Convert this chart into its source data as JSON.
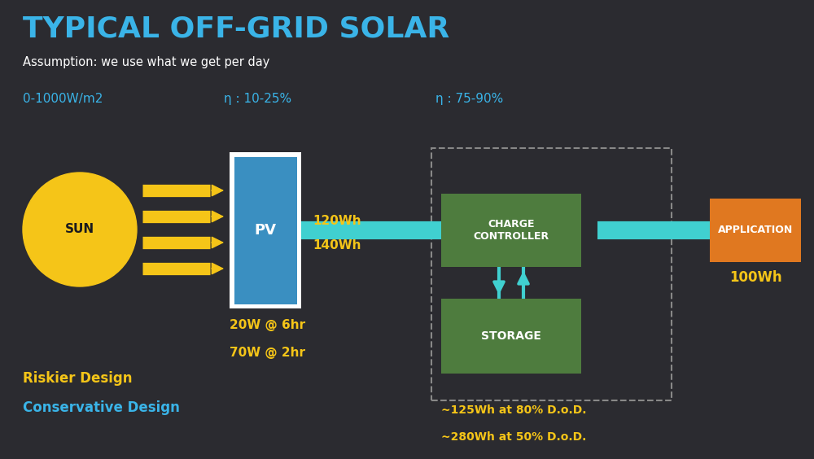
{
  "bg_color": "#2b2b30",
  "title": "TYPICAL OFF-GRID SOLAR",
  "title_color": "#3ab4e8",
  "subtitle": "Assumption: we use what we get per day",
  "subtitle_color": "#ffffff",
  "label_eta1": "η : 10-25%",
  "label_eta2": "η : 75-90%",
  "label_irrad": "0-1000W/m2",
  "label_color_blue": "#3ab4e8",
  "label_color_yellow": "#f5c518",
  "label_color_white": "#ffffff",
  "sun_color": "#f5c518",
  "sun_label": "SUN",
  "pv_color": "#3a8fc1",
  "pv_border_color": "#ffffff",
  "pv_label": "PV",
  "arrow_color_yellow": "#f5c518",
  "arrow_color_cyan": "#40d0d0",
  "cc_color": "#4e7c3e",
  "cc_label": "CHARGE\nCONTROLLER",
  "storage_color": "#4e7c3e",
  "storage_label": "STORAGE",
  "app_color": "#e07820",
  "app_label": "APPLICATION",
  "dashed_box_color": "#888888",
  "text_120wh": "120Wh",
  "text_140wh": "140Wh",
  "text_20w": "20W @ 6hr",
  "text_70w": "70W @ 2hr",
  "text_100wh": "100Wh",
  "text_125wh": "~125Wh at 80% D.o.D.",
  "text_280wh": "~280Wh at 50% D.o.D.",
  "text_riskier": "Riskier Design",
  "text_conservative": "Conservative Design"
}
